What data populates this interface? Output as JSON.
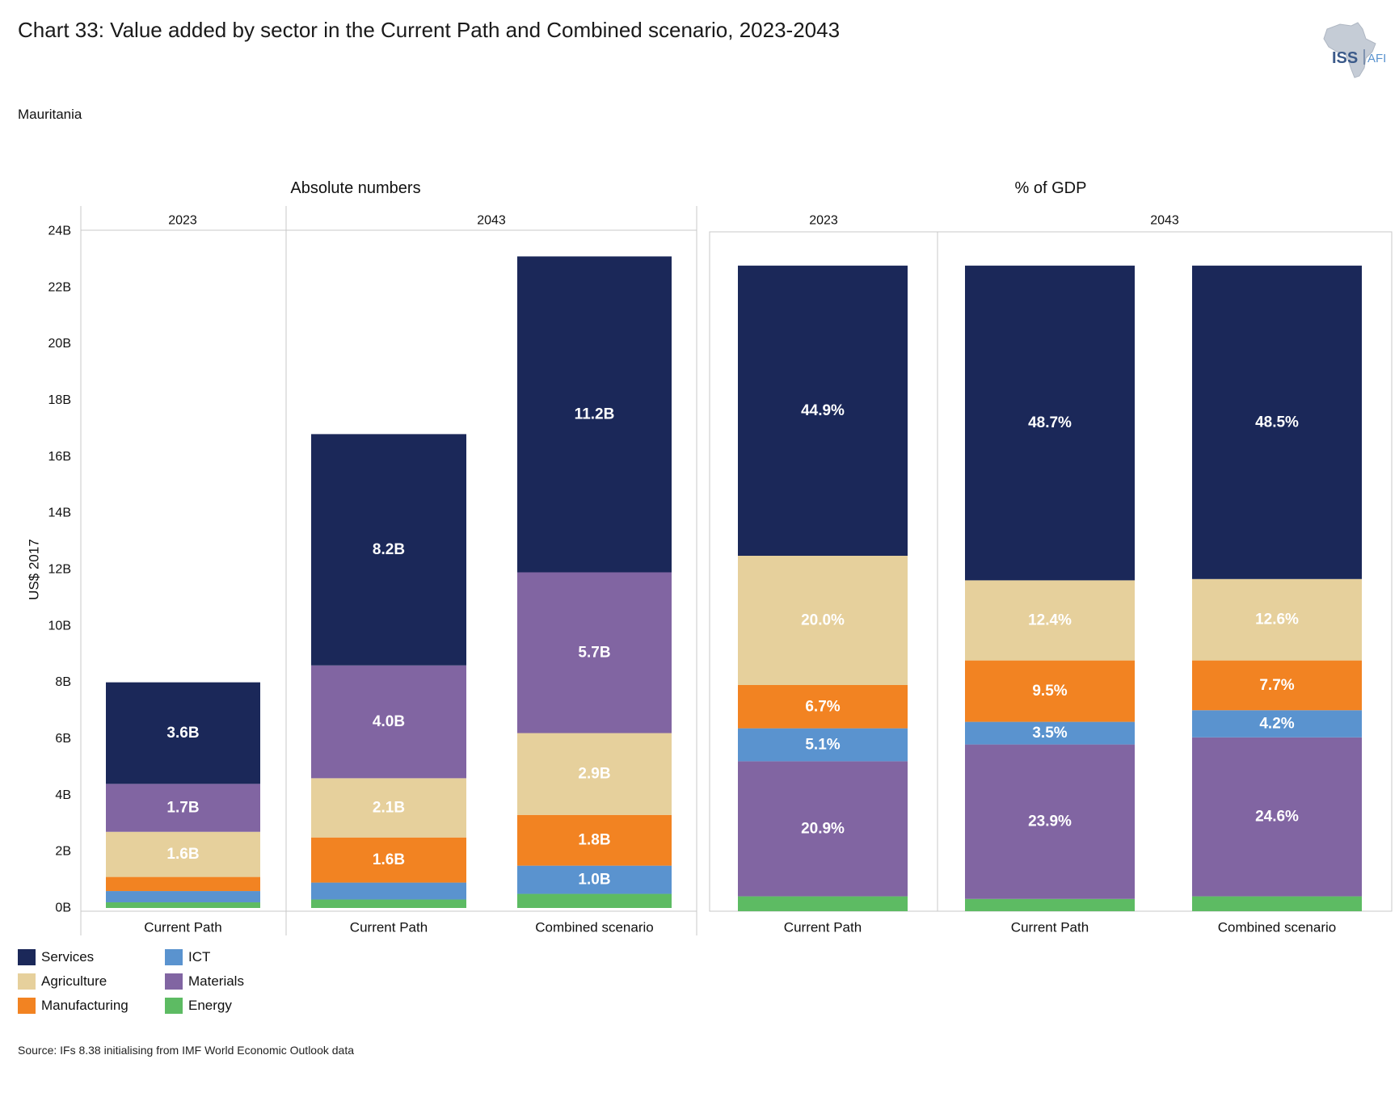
{
  "title": "Chart 33: Value added by sector in the Current Path and Combined scenario, 2023-2043",
  "subtitle": "Mauritania",
  "source": "Source: IFs 8.38 initialising from IMF World Economic Outlook data",
  "logo": {
    "text_main": "ISS",
    "text_side": "AFI"
  },
  "colors": {
    "Services": "#1b2859",
    "Agriculture": "#e6d09c",
    "Manufacturing": "#f28322",
    "ICT": "#5a93cf",
    "Materials": "#8165a2",
    "Energy": "#5dbb63"
  },
  "legend": [
    {
      "name": "Services",
      "color": "#1b2859"
    },
    {
      "name": "ICT",
      "color": "#5a93cf"
    },
    {
      "name": "Agriculture",
      "color": "#e6d09c"
    },
    {
      "name": "Materials",
      "color": "#8165a2"
    },
    {
      "name": "Manufacturing",
      "color": "#f28322"
    },
    {
      "name": "Energy",
      "color": "#5dbb63"
    }
  ],
  "chart_data": [
    {
      "type": "bar",
      "stacked": true,
      "title": "Absolute numbers",
      "ylabel": "US$ 2017",
      "ylim": [
        0,
        24
      ],
      "yticks": [
        "0B",
        "2B",
        "4B",
        "6B",
        "8B",
        "10B",
        "12B",
        "14B",
        "16B",
        "18B",
        "20B",
        "22B",
        "24B"
      ],
      "year_groups": [
        {
          "year": "2023",
          "categories": [
            "Current Path"
          ]
        },
        {
          "year": "2043",
          "categories": [
            "Current Path",
            "Combined scenario"
          ]
        }
      ],
      "categories": [
        "Current Path",
        "Current Path",
        "Combined scenario"
      ],
      "series": [
        {
          "name": "Energy",
          "values": [
            0.2,
            0.3,
            0.5
          ],
          "labels": [
            "",
            "",
            ""
          ]
        },
        {
          "name": "ICT",
          "values": [
            0.4,
            0.6,
            1.0
          ],
          "labels": [
            "",
            "",
            "1.0B"
          ]
        },
        {
          "name": "Manufacturing",
          "values": [
            0.5,
            1.6,
            1.8
          ],
          "labels": [
            "",
            "1.6B",
            "1.8B"
          ]
        },
        {
          "name": "Agriculture",
          "values": [
            1.6,
            2.1,
            2.9
          ],
          "labels": [
            "1.6B",
            "2.1B",
            "2.9B"
          ]
        },
        {
          "name": "Materials",
          "values": [
            1.7,
            4.0,
            5.7
          ],
          "labels": [
            "1.7B",
            "4.0B",
            "5.7B"
          ]
        },
        {
          "name": "Services",
          "values": [
            3.6,
            8.2,
            11.2
          ],
          "labels": [
            "3.6B",
            "8.2B",
            "11.2B"
          ]
        }
      ]
    },
    {
      "type": "bar",
      "stacked": true,
      "title": "% of GDP",
      "ylim": [
        0,
        100
      ],
      "year_groups": [
        {
          "year": "2023",
          "categories": [
            "Current Path"
          ]
        },
        {
          "year": "2043",
          "categories": [
            "Current Path",
            "Combined scenario"
          ]
        }
      ],
      "categories": [
        "Current Path",
        "Current Path",
        "Combined scenario"
      ],
      "series": [
        {
          "name": "Energy",
          "values": [
            2.3,
            1.9,
            2.3
          ],
          "labels": [
            "",
            "",
            ""
          ]
        },
        {
          "name": "Materials",
          "values": [
            20.9,
            23.9,
            24.6
          ],
          "labels": [
            "20.9%",
            "23.9%",
            "24.6%"
          ]
        },
        {
          "name": "ICT",
          "values": [
            5.1,
            3.5,
            4.2
          ],
          "labels": [
            "5.1%",
            "3.5%",
            "4.2%"
          ]
        },
        {
          "name": "Manufacturing",
          "values": [
            6.7,
            9.5,
            7.7
          ],
          "labels": [
            "6.7%",
            "9.5%",
            "7.7%"
          ]
        },
        {
          "name": "Agriculture",
          "values": [
            20.0,
            12.4,
            12.6
          ],
          "labels": [
            "20.0%",
            "12.4%",
            "12.6%"
          ]
        },
        {
          "name": "Services",
          "values": [
            44.9,
            48.7,
            48.5
          ],
          "labels": [
            "44.9%",
            "48.7%",
            "48.5%"
          ]
        }
      ]
    }
  ]
}
